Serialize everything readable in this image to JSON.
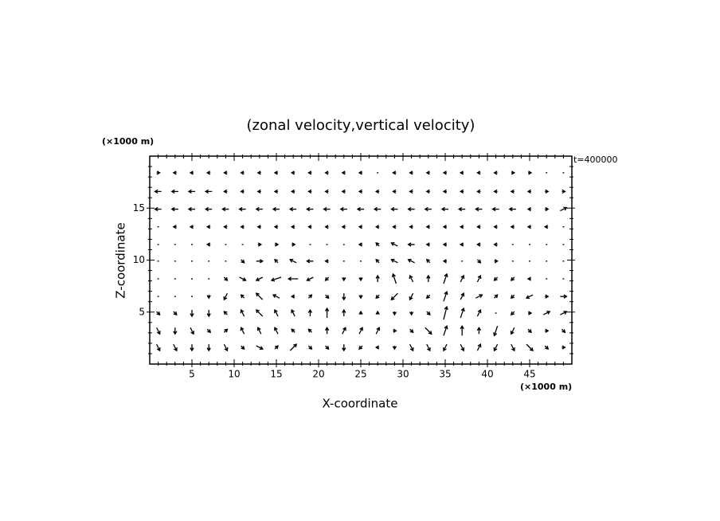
{
  "chart_data": {
    "type": "quiver",
    "title": "(zonal velocity,vertical velocity)",
    "x_label": "X-coordinate",
    "y_label": "Z-coordinate",
    "x_unit": "(×1000 m)",
    "y_unit": "(×1000 m)",
    "annotation": "t=400000",
    "color": "#000000",
    "xlim": [
      0,
      50
    ],
    "ylim": [
      0,
      20
    ],
    "xticks": [
      5,
      10,
      15,
      20,
      25,
      30,
      35,
      40,
      45
    ],
    "yticks": [
      5,
      10,
      15
    ],
    "xminorticks": [
      1,
      2,
      3,
      4,
      6,
      7,
      8,
      9,
      11,
      12,
      13,
      14,
      16,
      17,
      18,
      19,
      21,
      22,
      23,
      24,
      26,
      27,
      28,
      29,
      31,
      32,
      33,
      34,
      36,
      37,
      38,
      39,
      41,
      42,
      43,
      44,
      46,
      47,
      48,
      49
    ],
    "yminorticks": [
      1,
      2,
      3,
      4,
      6,
      7,
      8,
      9,
      11,
      12,
      13,
      14,
      16,
      17,
      18,
      19
    ],
    "x": [
      1,
      3,
      5,
      7,
      9,
      11,
      13,
      15,
      17,
      19,
      21,
      23,
      25,
      27,
      29,
      31,
      33,
      35,
      37,
      39,
      41,
      43,
      45,
      47,
      49
    ],
    "z": [
      1.6,
      3.2,
      4.9,
      6.5,
      8.2,
      9.9,
      11.5,
      13.2,
      14.9,
      16.6,
      18.4
    ],
    "u": [
      [
        1,
        1,
        0,
        0,
        1,
        1,
        2,
        1,
        2,
        1,
        1,
        0,
        -1,
        -1,
        0,
        1,
        1,
        -1,
        1,
        1,
        -1,
        1,
        2,
        1,
        1
      ],
      [
        1,
        0,
        1,
        1,
        1,
        -1,
        -1,
        -1,
        -1,
        -1,
        0,
        1,
        1,
        1,
        1,
        1,
        2,
        1,
        0,
        0,
        -1,
        -1,
        1,
        1,
        1
      ],
      [
        1,
        1,
        0,
        0,
        -1,
        -1,
        -2,
        -1,
        -1,
        0,
        0,
        0,
        0,
        0,
        0,
        0,
        1,
        1,
        1,
        1,
        0,
        -1,
        1,
        2,
        2
      ],
      [
        0,
        0,
        0,
        0,
        -1,
        -1,
        -2,
        -2,
        -1,
        1,
        1,
        0,
        0,
        -1,
        -2,
        -1,
        -1,
        1,
        1,
        2,
        1,
        -1,
        -2,
        1,
        2
      ],
      [
        0,
        0,
        0,
        0,
        1,
        2,
        -2,
        -3,
        -3,
        -2,
        -1,
        0,
        0,
        0,
        -1,
        -1,
        0,
        1,
        1,
        1,
        -1,
        -1,
        -1,
        0,
        0
      ],
      [
        0,
        0,
        0,
        0,
        0,
        1,
        2,
        -1,
        -2,
        -2,
        -1,
        0,
        0,
        -1,
        -2,
        -2,
        -1,
        -1,
        0,
        1,
        1,
        0,
        0,
        0,
        0
      ],
      [
        0,
        0,
        0,
        -1,
        0,
        0,
        1,
        1,
        1,
        0,
        0,
        0,
        -1,
        -1,
        -2,
        -2,
        -1,
        -1,
        -1,
        -1,
        -1,
        0,
        0,
        0,
        0
      ],
      [
        0,
        -1,
        -1,
        -1,
        -1,
        -1,
        -1,
        -1,
        -1,
        -1,
        -1,
        -1,
        -1,
        -1,
        -1,
        -1,
        -1,
        -1,
        -1,
        -1,
        -1,
        -1,
        -1,
        -1,
        0
      ],
      [
        -2,
        -2,
        -2,
        -2,
        -2,
        -2,
        -2,
        -2,
        -2,
        -2,
        -2,
        -2,
        -2,
        -2,
        -2,
        -2,
        -2,
        -2,
        -2,
        -2,
        -2,
        -2,
        -1,
        1,
        2
      ],
      [
        -2,
        -2,
        -2,
        -2,
        -1,
        -1,
        -1,
        -1,
        -1,
        -1,
        -1,
        -1,
        -1,
        -1,
        -1,
        -1,
        -1,
        -1,
        -1,
        -1,
        -1,
        -1,
        -1,
        1,
        1
      ],
      [
        1,
        -1,
        -1,
        -1,
        -1,
        -1,
        -1,
        -1,
        -1,
        -1,
        -1,
        -1,
        -1,
        0,
        -1,
        -1,
        -1,
        -1,
        -1,
        -1,
        -1,
        1,
        1,
        0,
        0
      ]
    ],
    "w": [
      [
        -2,
        -2,
        -2,
        -2,
        -2,
        -1,
        -1,
        1,
        2,
        -1,
        -1,
        -2,
        -1,
        0,
        -1,
        -2,
        -2,
        -2,
        -2,
        2,
        -2,
        -2,
        -2,
        -1,
        0
      ],
      [
        -2,
        -2,
        -2,
        -1,
        1,
        2,
        2,
        2,
        1,
        1,
        2,
        2,
        2,
        2,
        0,
        -1,
        -2,
        3,
        3,
        2,
        -3,
        -2,
        -1,
        0,
        -1
      ],
      [
        -1,
        -1,
        -2,
        -2,
        1,
        2,
        2,
        2,
        2,
        2,
        3,
        2,
        1,
        1,
        -1,
        -1,
        -1,
        4,
        3,
        2,
        0,
        -1,
        0,
        1,
        1
      ],
      [
        0,
        0,
        0,
        -1,
        -2,
        1,
        2,
        1,
        0,
        1,
        -1,
        -2,
        -1,
        -1,
        -2,
        -2,
        -1,
        3,
        2,
        1,
        1,
        -1,
        -1,
        0,
        0
      ],
      [
        0,
        0,
        0,
        0,
        -1,
        -1,
        -1,
        -1,
        0,
        -1,
        -1,
        -1,
        -1,
        2,
        3,
        2,
        2,
        3,
        2,
        2,
        -1,
        -1,
        0,
        0,
        0
      ],
      [
        0,
        0,
        0,
        0,
        0,
        -1,
        0,
        1,
        1,
        0,
        0,
        0,
        0,
        1,
        1,
        1,
        1,
        0,
        0,
        -1,
        0,
        0,
        0,
        0,
        0
      ],
      [
        0,
        0,
        0,
        0,
        0,
        0,
        0,
        0,
        0,
        0,
        0,
        0,
        0,
        1,
        1,
        0,
        0,
        0,
        0,
        0,
        0,
        0,
        0,
        0,
        0
      ],
      [
        0,
        0,
        0,
        0,
        0,
        0,
        0,
        0,
        0,
        0,
        0,
        0,
        0,
        0,
        0,
        0,
        0,
        0,
        0,
        0,
        0,
        0,
        0,
        0,
        0
      ],
      [
        0,
        0,
        0,
        0,
        0,
        0,
        0,
        0,
        0,
        0,
        0,
        0,
        0,
        0,
        0,
        0,
        0,
        0,
        0,
        0,
        0,
        0,
        0,
        0,
        1
      ],
      [
        0,
        0,
        0,
        0,
        0,
        0,
        0,
        0,
        0,
        0,
        0,
        0,
        0,
        0,
        0,
        0,
        0,
        0,
        0,
        0,
        0,
        0,
        0,
        0,
        0
      ],
      [
        0,
        0,
        0,
        0,
        0,
        0,
        0,
        0,
        0,
        0,
        0,
        0,
        0,
        0,
        0,
        0,
        0,
        0,
        0,
        0,
        0,
        0,
        0,
        0,
        0
      ]
    ]
  }
}
